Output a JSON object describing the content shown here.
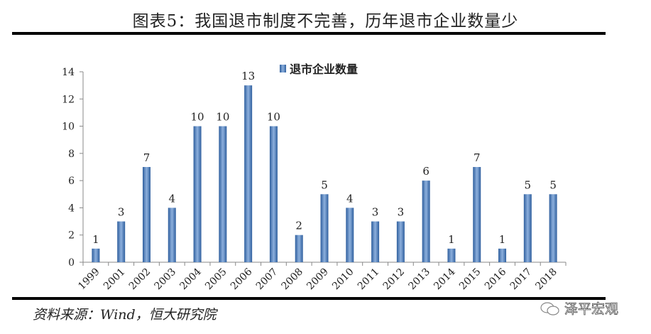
{
  "header": {
    "title": "图表5：我国退市制度不完善，历年退市企业数量少"
  },
  "footer": {
    "source": "资料来源：Wind，恒大研究院",
    "watermark": "泽平宏观"
  },
  "colors": {
    "bar": "#4a7ebb",
    "bar_light": "#8db0dd",
    "axis": "#888888"
  },
  "chart_data": {
    "type": "bar",
    "title": "图表5：我国退市制度不完善，历年退市企业数量少",
    "categories": [
      "1999",
      "2001",
      "2002",
      "2003",
      "2004",
      "2005",
      "2006",
      "2007",
      "2008",
      "2009",
      "2010",
      "2011",
      "2012",
      "2013",
      "2014",
      "2015",
      "2016",
      "2017",
      "2018"
    ],
    "series": [
      {
        "name": "退市企业数量",
        "values": [
          1,
          3,
          7,
          4,
          10,
          10,
          13,
          10,
          2,
          5,
          4,
          3,
          3,
          6,
          1,
          7,
          1,
          5,
          5
        ]
      }
    ],
    "xlabel": "",
    "ylabel": "",
    "ylim": [
      0,
      14
    ],
    "yticks": [
      0,
      2,
      4,
      6,
      8,
      10,
      12,
      14
    ],
    "grid": false,
    "legend_position": "top",
    "data_labels": true
  }
}
